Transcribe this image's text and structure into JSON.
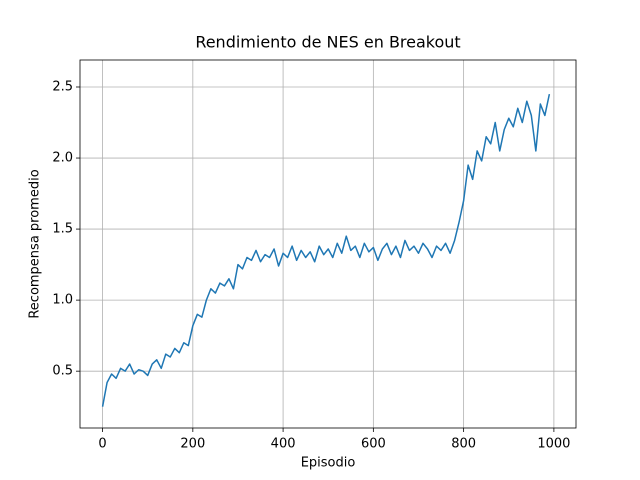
{
  "chart_data": {
    "type": "line",
    "title": "Rendimiento de NES en Breakout",
    "x_label": "Episodio",
    "y_label": "Recompensa promedio",
    "color": "#1f77b4",
    "grid": true,
    "xlim": [
      -50,
      1049
    ],
    "ylim": [
      0.1,
      2.69
    ],
    "xticks": [
      0,
      200,
      400,
      600,
      800,
      1000
    ],
    "yticks": [
      0.5,
      {
        "value": 1.0,
        "label": "1.0"
      },
      1.5,
      {
        "value": 2.0,
        "label": "2.0"
      },
      2.5
    ],
    "x": [
      0,
      10,
      20,
      30,
      40,
      50,
      60,
      70,
      80,
      90,
      100,
      110,
      120,
      130,
      140,
      150,
      160,
      170,
      180,
      190,
      200,
      210,
      220,
      230,
      240,
      250,
      260,
      270,
      280,
      290,
      300,
      310,
      320,
      330,
      340,
      350,
      360,
      370,
      380,
      390,
      400,
      410,
      420,
      430,
      440,
      450,
      460,
      470,
      480,
      490,
      500,
      510,
      520,
      530,
      540,
      550,
      560,
      570,
      580,
      590,
      600,
      610,
      620,
      630,
      640,
      650,
      660,
      670,
      680,
      690,
      700,
      710,
      720,
      730,
      740,
      750,
      760,
      770,
      780,
      790,
      800,
      810,
      820,
      830,
      840,
      850,
      860,
      870,
      880,
      890,
      900,
      910,
      920,
      930,
      940,
      950,
      960,
      970,
      980,
      990
    ],
    "values": [
      0.25,
      0.42,
      0.48,
      0.45,
      0.52,
      0.5,
      0.55,
      0.48,
      0.51,
      0.5,
      0.47,
      0.55,
      0.58,
      0.52,
      0.62,
      0.6,
      0.66,
      0.63,
      0.7,
      0.68,
      0.82,
      0.9,
      0.88,
      1.0,
      1.08,
      1.05,
      1.12,
      1.1,
      1.15,
      1.08,
      1.25,
      1.22,
      1.3,
      1.28,
      1.35,
      1.27,
      1.32,
      1.3,
      1.36,
      1.24,
      1.33,
      1.3,
      1.38,
      1.28,
      1.35,
      1.3,
      1.34,
      1.27,
      1.38,
      1.32,
      1.36,
      1.3,
      1.4,
      1.33,
      1.45,
      1.35,
      1.38,
      1.3,
      1.4,
      1.34,
      1.37,
      1.28,
      1.36,
      1.4,
      1.32,
      1.38,
      1.3,
      1.42,
      1.35,
      1.38,
      1.33,
      1.4,
      1.36,
      1.3,
      1.38,
      1.35,
      1.4,
      1.33,
      1.42,
      1.55,
      1.7,
      1.95,
      1.85,
      2.05,
      1.98,
      2.15,
      2.1,
      2.25,
      2.05,
      2.2,
      2.28,
      2.22,
      2.35,
      2.25,
      2.4,
      2.3,
      2.05,
      2.38,
      2.3,
      2.45
    ]
  }
}
